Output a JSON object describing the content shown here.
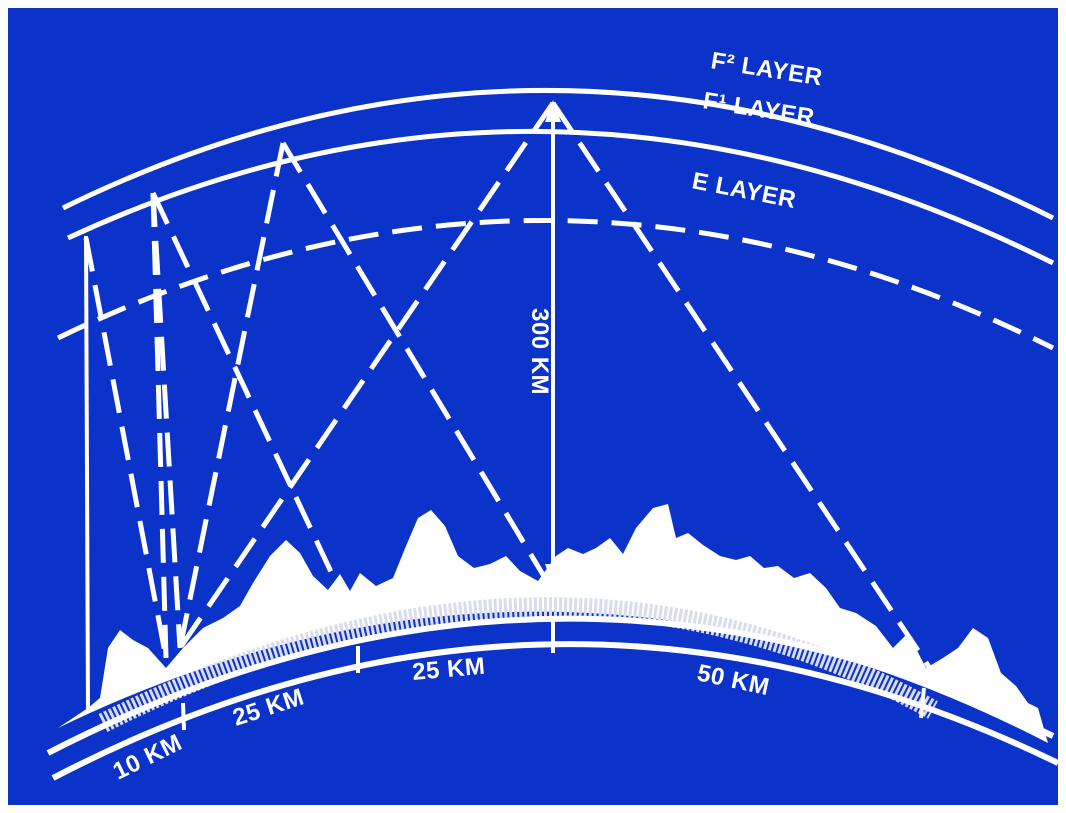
{
  "colors": {
    "background": "#0b33c9",
    "foreground": "#ffffff"
  },
  "layers": {
    "f2": "F² LAYER",
    "f1": "F¹ LAYER",
    "e": "E LAYER"
  },
  "height_label": "300 KM",
  "distances": {
    "d1": "10 KM",
    "d2": "25 KM",
    "d3": "25 KM",
    "d4": "50 KM"
  }
}
